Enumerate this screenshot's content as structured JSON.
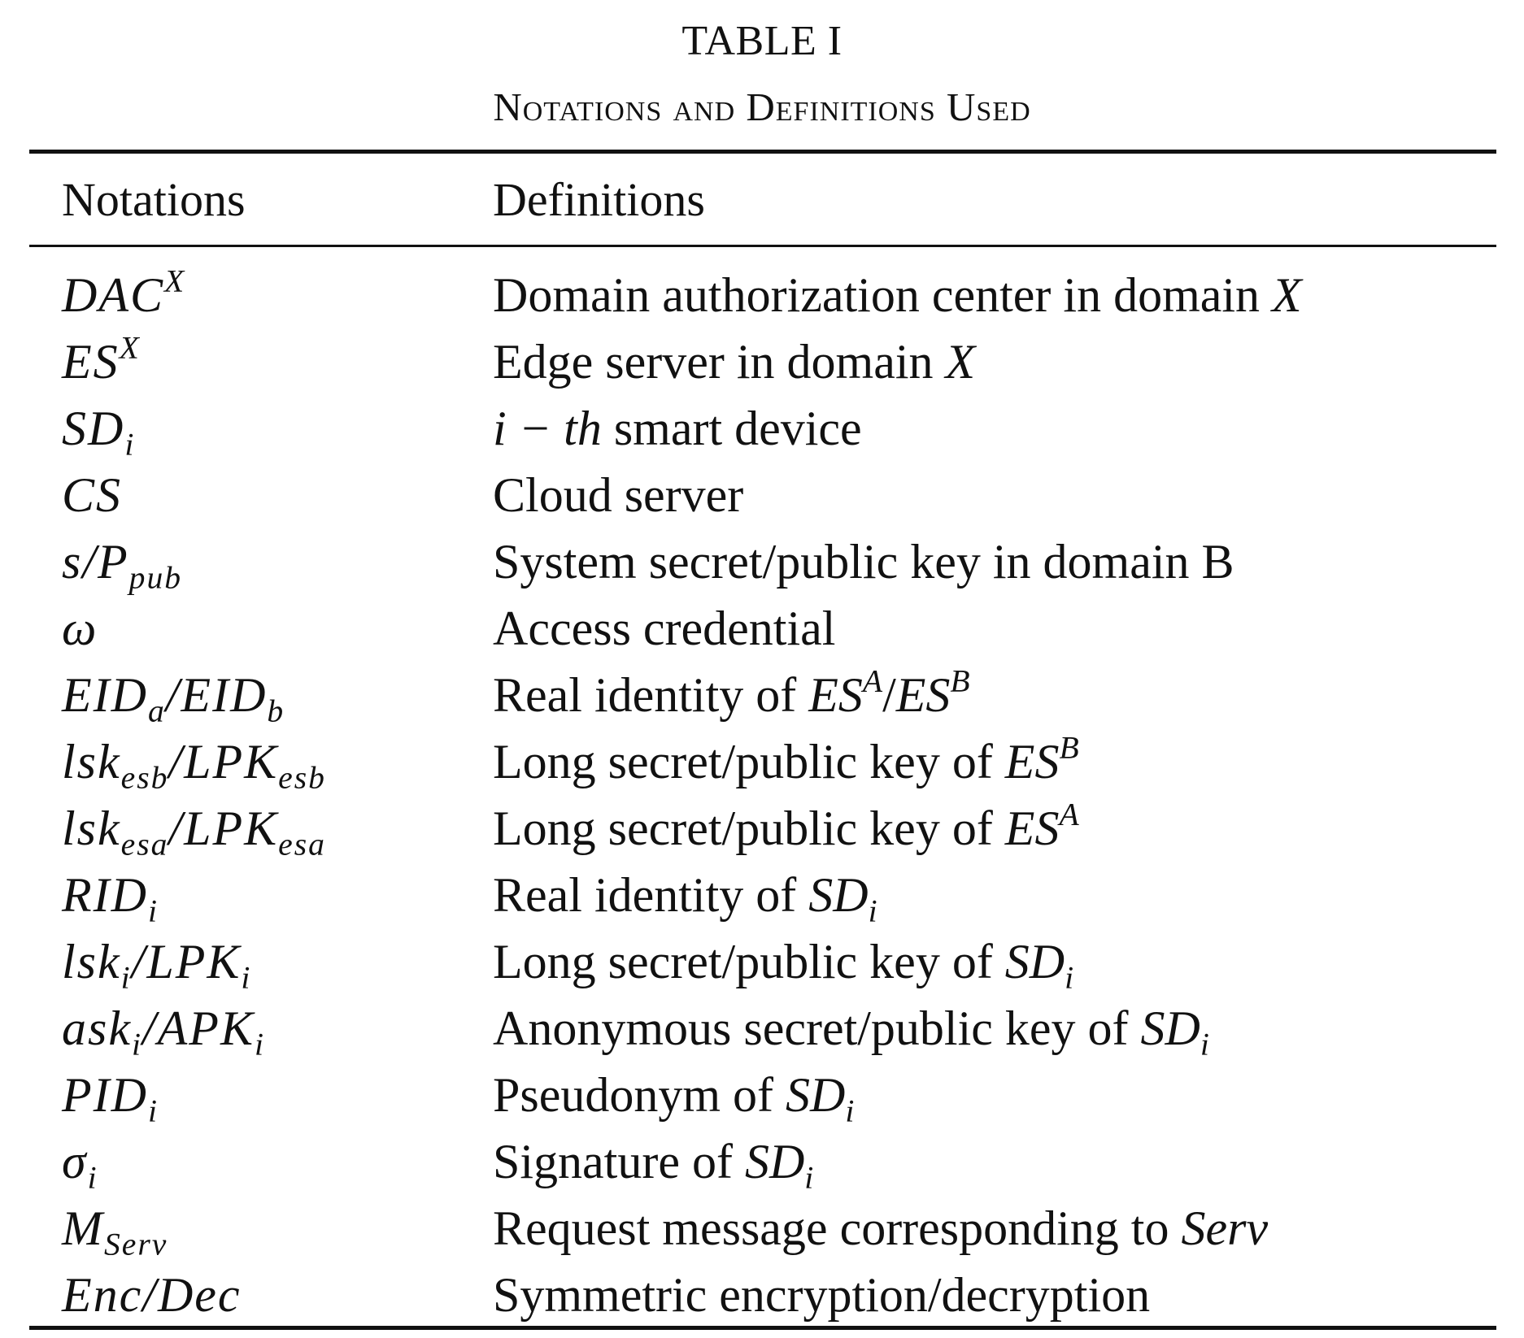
{
  "table": {
    "label": "TABLE I",
    "caption": "Notations and Definitions Used",
    "headers": {
      "notation": "Notations",
      "definition": "Definitions"
    },
    "rows": [
      {
        "notation": [
          {
            "t": "DAC"
          },
          {
            "t": "X",
            "sup": true
          }
        ],
        "definition": [
          {
            "t": "Domain authorization center in domain "
          },
          {
            "t": "X",
            "m": true
          }
        ]
      },
      {
        "notation": [
          {
            "t": "ES"
          },
          {
            "t": "X",
            "sup": true
          }
        ],
        "definition": [
          {
            "t": "Edge server in domain "
          },
          {
            "t": "X",
            "m": true
          }
        ]
      },
      {
        "notation": [
          {
            "t": "SD"
          },
          {
            "t": "i",
            "sub": true
          }
        ],
        "definition": [
          {
            "t": "i − th",
            "m": true
          },
          {
            "t": " smart device"
          }
        ]
      },
      {
        "notation": [
          {
            "t": "CS"
          }
        ],
        "definition": [
          {
            "t": "Cloud server"
          }
        ]
      },
      {
        "notation": [
          {
            "t": "s/P"
          },
          {
            "t": "pub",
            "sub": true
          }
        ],
        "definition": [
          {
            "t": "System secret/public key in domain B"
          }
        ]
      },
      {
        "notation": [
          {
            "t": "ω"
          }
        ],
        "definition": [
          {
            "t": "Access credential"
          }
        ]
      },
      {
        "notation": [
          {
            "t": "EID"
          },
          {
            "t": "a",
            "sub": true
          },
          {
            "t": "/EID"
          },
          {
            "t": "b",
            "sub": true
          }
        ],
        "definition": [
          {
            "t": "Real identity of "
          },
          {
            "t": "ES",
            "m": true
          },
          {
            "t": "A",
            "sup": true
          },
          {
            "t": "/"
          },
          {
            "t": "ES",
            "m": true
          },
          {
            "t": "B",
            "sup": true
          }
        ]
      },
      {
        "notation": [
          {
            "t": "lsk"
          },
          {
            "t": "esb",
            "sub": true
          },
          {
            "t": "/LPK"
          },
          {
            "t": "esb",
            "sub": true
          }
        ],
        "definition": [
          {
            "t": "Long secret/public key of "
          },
          {
            "t": "ES",
            "m": true
          },
          {
            "t": "B",
            "sup": true
          }
        ]
      },
      {
        "notation": [
          {
            "t": "lsk"
          },
          {
            "t": "esa",
            "sub": true
          },
          {
            "t": "/LPK"
          },
          {
            "t": "esa",
            "sub": true
          }
        ],
        "definition": [
          {
            "t": "Long secret/public key of "
          },
          {
            "t": "ES",
            "m": true
          },
          {
            "t": "A",
            "sup": true
          }
        ]
      },
      {
        "notation": [
          {
            "t": "RID"
          },
          {
            "t": "i",
            "sub": true
          }
        ],
        "definition": [
          {
            "t": "Real identity of "
          },
          {
            "t": "SD",
            "m": true
          },
          {
            "t": "i",
            "sub": true
          }
        ]
      },
      {
        "notation": [
          {
            "t": "lsk"
          },
          {
            "t": "i",
            "sub": true
          },
          {
            "t": "/LPK"
          },
          {
            "t": "i",
            "sub": true
          }
        ],
        "definition": [
          {
            "t": "Long secret/public key of "
          },
          {
            "t": "SD",
            "m": true
          },
          {
            "t": "i",
            "sub": true
          }
        ]
      },
      {
        "notation": [
          {
            "t": "ask"
          },
          {
            "t": "i",
            "sub": true
          },
          {
            "t": "/APK"
          },
          {
            "t": "i",
            "sub": true
          }
        ],
        "definition": [
          {
            "t": "Anonymous secret/public key of "
          },
          {
            "t": "SD",
            "m": true
          },
          {
            "t": "i",
            "sub": true
          }
        ]
      },
      {
        "notation": [
          {
            "t": "PID"
          },
          {
            "t": "i",
            "sub": true
          }
        ],
        "definition": [
          {
            "t": "Pseudonym of "
          },
          {
            "t": "SD",
            "m": true
          },
          {
            "t": "i",
            "sub": true
          }
        ]
      },
      {
        "notation": [
          {
            "t": "σ"
          },
          {
            "t": "i",
            "sub": true
          }
        ],
        "definition": [
          {
            "t": "Signature of "
          },
          {
            "t": "SD",
            "m": true
          },
          {
            "t": "i",
            "sub": true
          }
        ]
      },
      {
        "notation": [
          {
            "t": "M"
          },
          {
            "t": "Serv",
            "sub": true
          }
        ],
        "definition": [
          {
            "t": "Request message corresponding to "
          },
          {
            "t": "Serv",
            "m": true
          }
        ]
      },
      {
        "notation": [
          {
            "t": "Enc/Dec"
          }
        ],
        "definition": [
          {
            "t": "Symmetric encryption/decryption"
          }
        ]
      }
    ]
  }
}
